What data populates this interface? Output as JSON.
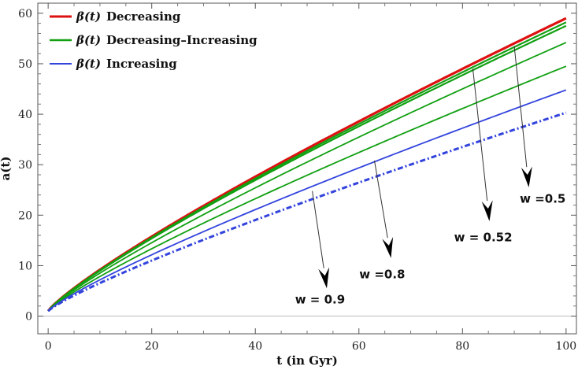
{
  "chart_data": {
    "type": "line",
    "title": "",
    "xlabel": "t (in Gyr)",
    "ylabel": "a(t)",
    "xlim": [
      -2,
      102
    ],
    "ylim": [
      -3.5,
      62
    ],
    "x_ticks": [
      0,
      20,
      40,
      60,
      80,
      100
    ],
    "y_ticks": [
      0,
      10,
      20,
      30,
      40,
      50,
      60
    ],
    "grid": false,
    "legend_position": "top-left",
    "colors": {
      "decreasing": "#dd1111",
      "decreasing_increasing": "#11a011",
      "increasing": "#3344dd"
    },
    "legend": [
      {
        "beta": "β(t)",
        "label": "Decreasing",
        "color": "#dd1111"
      },
      {
        "beta": "β(t)",
        "label": "Decreasing–Increasing",
        "color": "#11a011"
      },
      {
        "beta": "β(t)",
        "label": "Increasing",
        "color": "#3344dd"
      }
    ],
    "series": [
      {
        "name": "β(t) Decreasing",
        "color": "#dd1111",
        "style": "solid",
        "width": 3.2,
        "start": 1,
        "end": 59.0
      },
      {
        "name": "β(t) Decreasing–Increasing (1)",
        "color": "#11a011",
        "style": "solid",
        "width": 2.2,
        "start": 1,
        "end": 58.2
      },
      {
        "name": "β(t) Decreasing–Increasing (2)",
        "color": "#11a011",
        "style": "solid",
        "width": 2.2,
        "start": 1,
        "end": 57.5
      },
      {
        "name": "β(t) Decreasing–Increasing (3)",
        "color": "#11a011",
        "style": "solid",
        "width": 1.8,
        "start": 1,
        "end": 54.2
      },
      {
        "name": "β(t) Decreasing–Increasing (4)",
        "color": "#11a011",
        "style": "solid",
        "width": 1.8,
        "start": 1,
        "end": 49.5
      },
      {
        "name": "β(t) Increasing",
        "color": "#3344dd",
        "style": "solid",
        "width": 1.8,
        "start": 1,
        "end": 44.8
      },
      {
        "name": "β(t) Increasing (dot-dashed)",
        "color": "#3344dd",
        "style": "dotdash",
        "width": 3,
        "start": 1,
        "end": 40.3
      }
    ],
    "annotations": [
      {
        "label": "w = 0.9",
        "from": [
          51,
          24.8
        ],
        "to": [
          53.8,
          5.5
        ],
        "text_at": [
          52.5,
          2.5
        ]
      },
      {
        "label": "w =0.8",
        "from": [
          63,
          30.8
        ],
        "to": [
          66.2,
          11.5
        ],
        "text_at": [
          64.5,
          7.5
        ]
      },
      {
        "label": "w = 0.52",
        "from": [
          82,
          49.0
        ],
        "to": [
          85.2,
          18.8
        ],
        "text_at": [
          84.0,
          14.8
        ]
      },
      {
        "label": "w =0.5",
        "from": [
          90,
          53.5
        ],
        "to": [
          92.8,
          25.5
        ],
        "text_at": [
          95.5,
          22.5
        ]
      }
    ]
  }
}
